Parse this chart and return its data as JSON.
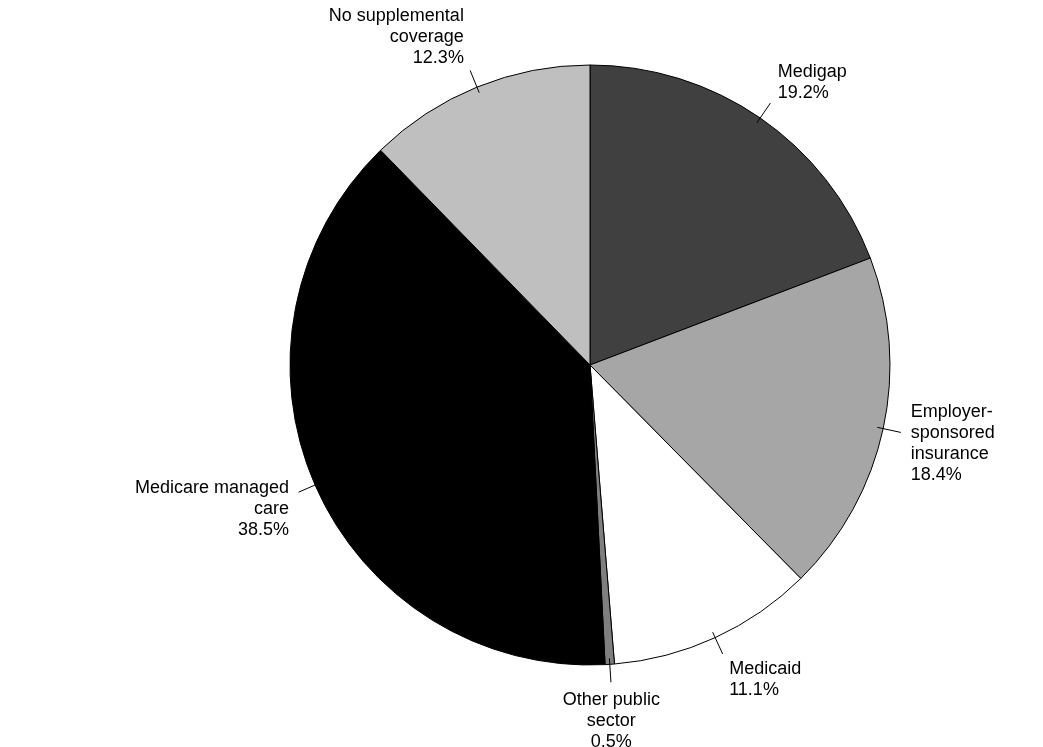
{
  "chart_data": {
    "type": "pie",
    "categories": [
      "Medigap",
      "Employer-sponsored insurance",
      "Medicaid",
      "Other public sector",
      "Medicare managed care",
      "No supplemental coverage"
    ],
    "values": [
      19.2,
      18.4,
      11.1,
      0.5,
      38.5,
      12.3
    ],
    "colors": [
      "#404040",
      "#a6a6a6",
      "#ffffff",
      "#7f7f7f",
      "#000000",
      "#bfbfbf"
    ],
    "value_labels": [
      "19.2%",
      "18.4%",
      "11.1%",
      "0.5%",
      "38.5%",
      "12.3%"
    ]
  }
}
